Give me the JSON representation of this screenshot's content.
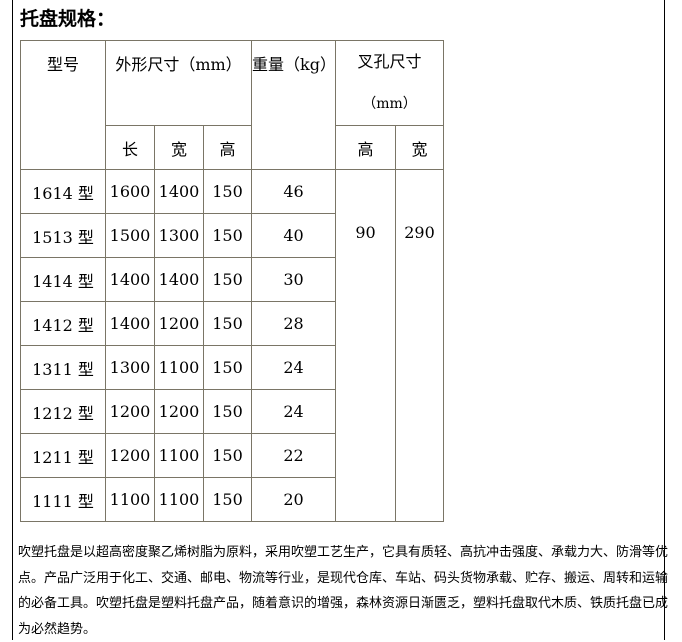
{
  "title": "托盘规格：",
  "table": {
    "headers": {
      "model": "型号",
      "dims": "外形尺寸（mm）",
      "weight": "重量（kg）",
      "fork": "叉孔尺寸",
      "fork_unit": "（mm）",
      "length": "长",
      "width": "宽",
      "height": "高",
      "fork_height": "高",
      "fork_width": "宽"
    },
    "rows": [
      {
        "model": "1614 型",
        "length": "1600",
        "width": "1400",
        "height": "150",
        "weight": "46"
      },
      {
        "model": "1513 型",
        "length": "1500",
        "width": "1300",
        "height": "150",
        "weight": "40"
      },
      {
        "model": "1414 型",
        "length": "1400",
        "width": "1400",
        "height": "150",
        "weight": "30"
      },
      {
        "model": "1412 型",
        "length": "1400",
        "width": "1200",
        "height": "150",
        "weight": "28"
      },
      {
        "model": "1311 型",
        "length": "1300",
        "width": "1100",
        "height": "150",
        "weight": "24"
      },
      {
        "model": "1212 型",
        "length": "1200",
        "width": "1200",
        "height": "150",
        "weight": "24"
      },
      {
        "model": "1211 型",
        "length": "1200",
        "width": "1100",
        "height": "150",
        "weight": "22"
      },
      {
        "model": "1111 型",
        "length": "1100",
        "width": "1100",
        "height": "150",
        "weight": "20"
      }
    ],
    "fork_height": "90",
    "fork_width": "290"
  },
  "description": "吹塑托盘是以超高密度聚乙烯树脂为原料，采用吹塑工艺生产，它具有质轻、高抗冲击强度、承载力大、防滑等优点。产品广泛用于化工、交通、邮电、物流等行业，是现代仓库、车站、码头货物承载、贮存、搬运、周转和运输的必备工具。吹塑托盘是塑料托盘产品，随着意识的增强，森林资源日渐匮乏，塑料托盘取代木质、铁质托盘已成为必然趋势。"
}
